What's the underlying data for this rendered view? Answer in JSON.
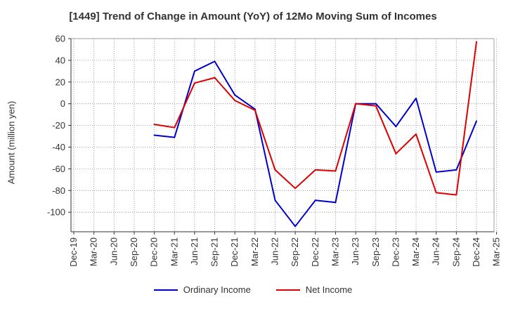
{
  "chart_data": {
    "type": "line",
    "title": "[1449]  Trend of Change in Amount (YoY) of 12Mo Moving Sum of Incomes",
    "ylabel": "Amount (million yen)",
    "xlabel": "",
    "ylim": [
      -118,
      60
    ],
    "yticks": [
      60,
      40,
      20,
      0,
      -20,
      -40,
      -60,
      -80,
      -100
    ],
    "grid": true,
    "legend_position": "bottom",
    "categories": [
      "Dec-19",
      "Mar-20",
      "Jun-20",
      "Sep-20",
      "Dec-20",
      "Mar-21",
      "Jun-21",
      "Sep-21",
      "Dec-21",
      "Mar-22",
      "Jun-22",
      "Sep-22",
      "Dec-22",
      "Mar-23",
      "Jun-23",
      "Sep-23",
      "Dec-23",
      "Mar-24",
      "Jun-24",
      "Sep-24",
      "Dec-24",
      "Mar-25"
    ],
    "series": [
      {
        "name": "Ordinary Income",
        "color": "#0000cc",
        "values": [
          null,
          null,
          null,
          null,
          -29,
          -31,
          30,
          39,
          8,
          -5,
          -89,
          -113,
          -89,
          -91,
          0,
          0,
          -21,
          5,
          -63,
          -61,
          -16,
          null
        ]
      },
      {
        "name": "Net Income",
        "color": "#dd0000",
        "values": [
          null,
          null,
          null,
          null,
          -19,
          -22,
          19,
          24,
          3,
          -6,
          -61,
          -78,
          -61,
          -62,
          0,
          -2,
          -46,
          -28,
          -82,
          -84,
          57,
          null
        ]
      }
    ]
  }
}
